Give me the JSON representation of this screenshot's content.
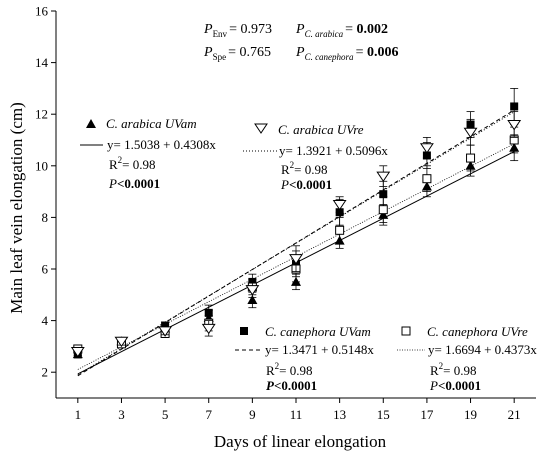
{
  "chart_data": {
    "type": "scatter",
    "xlabel": "Days of linear elongation",
    "ylabel": "Main leaf vein elongation (cm)",
    "xlim": [
      0,
      22
    ],
    "ylim": [
      1,
      16
    ],
    "x_ticks": [
      1,
      3,
      5,
      7,
      9,
      11,
      13,
      15,
      17,
      19,
      21
    ],
    "y_ticks": [
      2,
      4,
      6,
      8,
      10,
      12,
      14,
      16
    ],
    "x": [
      1,
      3,
      5,
      7,
      9,
      11,
      13,
      15,
      17,
      19,
      21
    ],
    "grid": false,
    "stats": {
      "p_env_label": "P",
      "p_env_sub": "Env",
      "p_env_value": "= 0.973",
      "p_spe_label": "P",
      "p_spe_sub": "Spe",
      "p_spe_value": "= 0.765",
      "p_arabica_label": "P",
      "p_arabica_sub": "C. arabica",
      "p_arabica_eq": "= ",
      "p_arabica_value": "0.002",
      "p_canephora_label": "P",
      "p_canephora_sub": "C. canephora",
      "p_canephora_eq": "= ",
      "p_canephora_value": "0.006"
    },
    "series": [
      {
        "name": "C. arabica UVam",
        "marker": "filled-triangle",
        "line_style": "solid",
        "values": [
          2.7,
          3.2,
          3.7,
          4.1,
          4.8,
          5.5,
          7.1,
          8.1,
          9.2,
          10.0,
          10.7
        ],
        "errors": [
          0.15,
          0.15,
          0.15,
          0.3,
          0.3,
          0.3,
          0.3,
          0.4,
          0.4,
          0.4,
          0.5
        ],
        "equation": "y= 1.5038 + 0.4308x",
        "intercept": 1.5038,
        "slope": 0.4308,
        "r2_label": "R",
        "r2_exp": "2",
        "r2_value": "= 0.98",
        "p_label": "P",
        "p_value": "<0.0001"
      },
      {
        "name": "C. arabica UVre",
        "marker": "open-triangle",
        "line_style": "dotted",
        "values": [
          2.8,
          3.2,
          3.6,
          3.7,
          5.2,
          6.4,
          8.5,
          9.6,
          10.7,
          11.3,
          11.6
        ],
        "errors": [
          0.15,
          0.15,
          0.15,
          0.3,
          0.3,
          0.5,
          0.3,
          0.4,
          0.4,
          0.5,
          0.5
        ],
        "equation": "y= 1.3921 + 0.5096x",
        "intercept": 1.3921,
        "slope": 0.5096,
        "r2_label": "R",
        "r2_exp": "2",
        "r2_value": "= 0.98",
        "p_label": "P",
        "p_value": "<0.0001"
      },
      {
        "name": "C. canephora UVam",
        "marker": "filled-square",
        "line_style": "dashed",
        "values": [
          2.8,
          3.2,
          3.8,
          4.3,
          5.5,
          6.2,
          8.2,
          8.9,
          10.4,
          11.6,
          12.3
        ],
        "errors": [
          0.15,
          0.15,
          0.15,
          0.3,
          0.3,
          0.5,
          0.5,
          0.5,
          0.5,
          0.5,
          0.7
        ],
        "equation": "y= 1.3471 + 0.5148x",
        "intercept": 1.3471,
        "slope": 0.5148,
        "r2_label": "R",
        "r2_exp": "2",
        "r2_value": "= 0.98",
        "p_label": "P",
        "p_value": "<0.0001"
      },
      {
        "name": "C. canephora UVre",
        "marker": "open-square",
        "line_style": "fine-dotted",
        "values": [
          2.9,
          3.1,
          3.5,
          3.9,
          5.3,
          6.0,
          7.5,
          8.3,
          9.5,
          10.3,
          11.0
        ],
        "errors": [
          0.15,
          0.15,
          0.15,
          0.3,
          0.3,
          0.5,
          0.5,
          0.5,
          0.5,
          0.5,
          0.5
        ],
        "equation": "y= 1.6694 + 0.4373x",
        "intercept": 1.6694,
        "slope": 0.4373,
        "r2_label": "R",
        "r2_exp": "2",
        "r2_value": "= 0.98",
        "p_label": "P",
        "p_value": "<0.0001"
      }
    ]
  }
}
